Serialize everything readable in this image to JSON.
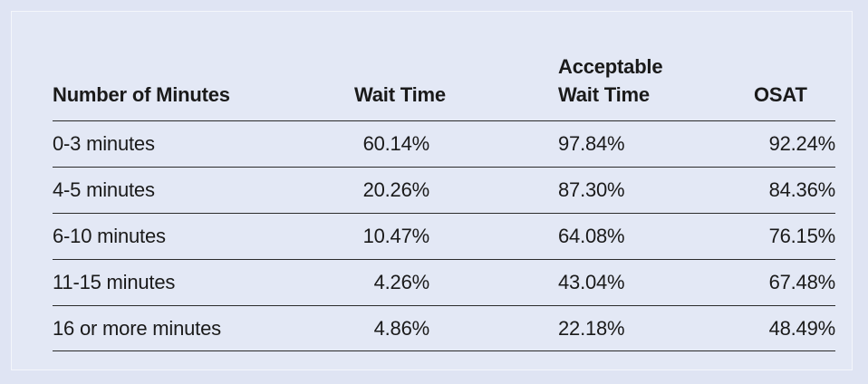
{
  "table": {
    "headers": {
      "minutes": "Number of Minutes",
      "wait_time": "Wait Time",
      "acceptable_line1": "Acceptable",
      "acceptable_line2": "Wait Time",
      "osat": "OSAT"
    },
    "rows": [
      {
        "minutes": "0-3 minutes",
        "wait_time": "60.14%",
        "acceptable": "97.84%",
        "osat": "92.24%"
      },
      {
        "minutes": "4-5 minutes",
        "wait_time": "20.26%",
        "acceptable": "87.30%",
        "osat": "84.36%"
      },
      {
        "minutes": "6-10 minutes",
        "wait_time": "10.47%",
        "acceptable": "64.08%",
        "osat": "76.15%"
      },
      {
        "minutes": "11-15 minutes",
        "wait_time": "4.26%",
        "acceptable": "43.04%",
        "osat": "67.48%"
      },
      {
        "minutes": "16 or more minutes",
        "wait_time": "4.86%",
        "acceptable": "22.18%",
        "osat": "48.49%"
      }
    ]
  }
}
